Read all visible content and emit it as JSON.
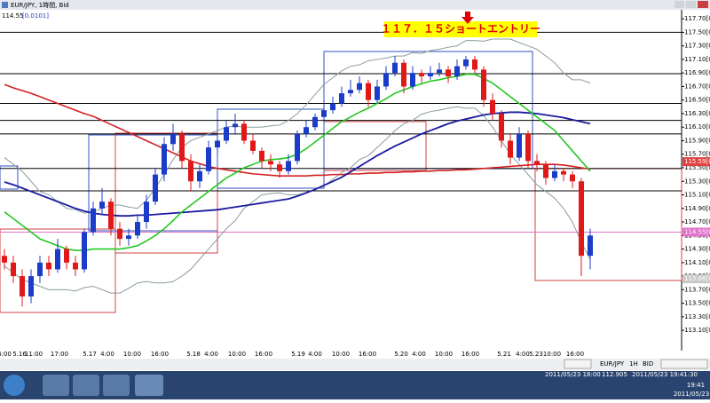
{
  "window": {
    "title": "EUR/JPY, 1時間, Bid",
    "quote": "114.55",
    "spread": "[0.0101]"
  },
  "chart_data": {
    "type": "candlestick",
    "annotation": "１１７．１５ショートエントリー",
    "time_labels": [
      "4:00",
      "5.16",
      "11:00",
      "17:00",
      "5.17",
      "4:00",
      "10:00",
      "16:00",
      "5.18",
      "4:00",
      "10:00",
      "16:00",
      "5.19",
      "4:00",
      "10:00",
      "16:00",
      "5.20",
      "4:00",
      "10:00",
      "16:00",
      "5.21",
      "4:00",
      "5.23",
      "10:00",
      "16:00"
    ],
    "up_color": "#1a3cc8",
    "down_color": "#e01818",
    "candles": [
      [
        114.2,
        114.3,
        114.0,
        114.1
      ],
      [
        114.1,
        114.2,
        113.8,
        113.9
      ],
      [
        113.9,
        114.0,
        113.45,
        113.6
      ],
      [
        113.6,
        114.0,
        113.5,
        113.9
      ],
      [
        113.9,
        114.2,
        113.8,
        114.1
      ],
      [
        114.1,
        114.2,
        113.9,
        114.0
      ],
      [
        114.0,
        114.45,
        113.95,
        114.3
      ],
      [
        114.3,
        114.35,
        114.0,
        114.1
      ],
      [
        114.1,
        114.2,
        113.9,
        114.0
      ],
      [
        114.0,
        114.6,
        113.95,
        114.55
      ],
      [
        114.55,
        115.0,
        114.5,
        114.9
      ],
      [
        114.9,
        115.2,
        114.8,
        115.0
      ],
      [
        115.0,
        115.05,
        114.5,
        114.6
      ],
      [
        114.6,
        114.7,
        114.35,
        114.45
      ],
      [
        114.45,
        114.6,
        114.35,
        114.5
      ],
      [
        114.5,
        114.8,
        114.45,
        114.7
      ],
      [
        114.7,
        115.1,
        114.6,
        115.0
      ],
      [
        115.0,
        115.5,
        114.95,
        115.4
      ],
      [
        115.4,
        115.95,
        115.3,
        115.85
      ],
      [
        115.85,
        116.15,
        115.75,
        116.0
      ],
      [
        116.0,
        116.05,
        115.5,
        115.6
      ],
      [
        115.6,
        115.7,
        115.15,
        115.3
      ],
      [
        115.3,
        115.55,
        115.2,
        115.45
      ],
      [
        115.45,
        115.9,
        115.4,
        115.8
      ],
      [
        115.8,
        116.0,
        115.7,
        115.9
      ],
      [
        115.9,
        116.2,
        115.85,
        116.1
      ],
      [
        116.1,
        116.3,
        116.0,
        116.15
      ],
      [
        116.15,
        116.2,
        115.85,
        115.9
      ],
      [
        115.9,
        116.0,
        115.7,
        115.75
      ],
      [
        115.75,
        115.8,
        115.5,
        115.6
      ],
      [
        115.6,
        115.7,
        115.45,
        115.55
      ],
      [
        115.55,
        115.6,
        115.35,
        115.45
      ],
      [
        115.45,
        115.7,
        115.4,
        115.6
      ],
      [
        115.6,
        116.05,
        115.55,
        116.0
      ],
      [
        116.0,
        116.2,
        115.95,
        116.1
      ],
      [
        116.1,
        116.3,
        116.05,
        116.25
      ],
      [
        116.25,
        116.45,
        116.2,
        116.35
      ],
      [
        116.35,
        116.55,
        116.3,
        116.45
      ],
      [
        116.45,
        116.7,
        116.4,
        116.6
      ],
      [
        116.6,
        116.8,
        116.55,
        116.65
      ],
      [
        116.65,
        116.85,
        116.6,
        116.75
      ],
      [
        116.75,
        116.8,
        116.4,
        116.5
      ],
      [
        116.5,
        116.8,
        116.45,
        116.7
      ],
      [
        116.7,
        117.0,
        116.65,
        116.9
      ],
      [
        116.9,
        117.15,
        116.85,
        117.05
      ],
      [
        117.05,
        117.1,
        116.6,
        116.7
      ],
      [
        116.7,
        117.0,
        116.65,
        116.9
      ],
      [
        116.9,
        116.95,
        116.75,
        116.85
      ],
      [
        116.85,
        117.0,
        116.8,
        116.9
      ],
      [
        116.9,
        117.05,
        116.85,
        116.95
      ],
      [
        116.95,
        117.0,
        116.75,
        116.85
      ],
      [
        116.85,
        117.1,
        116.8,
        117.0
      ],
      [
        117.0,
        117.15,
        116.95,
        117.1
      ],
      [
        117.1,
        117.15,
        116.9,
        116.95
      ],
      [
        116.95,
        117.0,
        116.4,
        116.5
      ],
      [
        116.5,
        116.6,
        116.2,
        116.3
      ],
      [
        116.3,
        116.35,
        115.8,
        115.9
      ],
      [
        115.9,
        116.0,
        115.55,
        115.65
      ],
      [
        115.65,
        116.1,
        115.6,
        116.0
      ],
      [
        116.0,
        116.05,
        115.5,
        115.6
      ],
      [
        115.6,
        115.7,
        115.45,
        115.55
      ],
      [
        115.55,
        115.6,
        115.25,
        115.35
      ],
      [
        115.35,
        115.55,
        115.3,
        115.45
      ],
      [
        115.45,
        115.5,
        115.3,
        115.4
      ],
      [
        115.4,
        115.45,
        115.2,
        115.3
      ],
      [
        115.3,
        115.35,
        113.9,
        114.2
      ],
      [
        114.2,
        114.6,
        114.0,
        114.5
      ]
    ],
    "indicators": [
      {
        "color": "#8c9c9c",
        "width": 1,
        "values": [
          115.65,
          115.55,
          115.45,
          115.3,
          115.15,
          115.1,
          115.0,
          114.9,
          114.88,
          114.83,
          114.85,
          114.9,
          114.95,
          114.95,
          114.92,
          114.9,
          115.02,
          115.2,
          115.4,
          115.62,
          115.8,
          115.9,
          115.95,
          116.0,
          116.05,
          116.1,
          116.12,
          116.1,
          116.1,
          116.1,
          116.12,
          116.13,
          116.2,
          116.3,
          116.43,
          116.58,
          116.73,
          116.83,
          116.93,
          117.0,
          117.02,
          117.08,
          117.1,
          117.12,
          117.15,
          117.15,
          117.2,
          117.19,
          117.23,
          117.25,
          117.28,
          117.3,
          117.38,
          117.38,
          117.37,
          117.4,
          117.4,
          117.4,
          117.35,
          117.3,
          117.25,
          117.15,
          117.05,
          116.9,
          116.8,
          116.8,
          116.75
        ]
      },
      {
        "color": "#8c9c9c",
        "width": 1,
        "values": [
          114.05,
          113.95,
          113.85,
          113.8,
          113.75,
          113.7,
          113.7,
          113.7,
          113.68,
          113.73,
          113.75,
          113.7,
          113.65,
          113.65,
          113.72,
          113.8,
          113.82,
          113.8,
          113.8,
          113.82,
          113.9,
          114.0,
          114.15,
          114.3,
          114.45,
          114.6,
          114.72,
          114.9,
          115.0,
          115.1,
          115.12,
          115.13,
          115.1,
          115.1,
          115.13,
          115.18,
          115.23,
          115.33,
          115.43,
          115.5,
          115.62,
          115.68,
          115.8,
          115.92,
          116.05,
          116.15,
          116.2,
          116.29,
          116.33,
          116.35,
          116.38,
          116.4,
          116.38,
          116.38,
          116.27,
          116.1,
          115.9,
          115.7,
          115.55,
          115.4,
          115.25,
          115.15,
          115.05,
          114.9,
          114.7,
          114.4,
          114.15
        ]
      },
      {
        "color": "#d42020",
        "width": 1.6,
        "values": [
          116.73,
          116.68,
          116.64,
          116.6,
          116.55,
          116.5,
          116.45,
          116.4,
          116.35,
          116.3,
          116.26,
          116.2,
          116.14,
          116.08,
          116.02,
          115.96,
          115.9,
          115.84,
          115.78,
          115.72,
          115.66,
          115.6,
          115.56,
          115.52,
          115.49,
          115.47,
          115.45,
          115.43,
          115.41,
          115.4,
          115.39,
          115.38,
          115.38,
          115.38,
          115.38,
          115.39,
          115.39,
          115.4,
          115.4,
          115.41,
          115.41,
          115.42,
          115.42,
          115.43,
          115.43,
          115.44,
          115.44,
          115.45,
          115.45,
          115.46,
          115.46,
          115.47,
          115.47,
          115.48,
          115.49,
          115.5,
          115.51,
          115.52,
          115.53,
          115.54,
          115.55,
          115.55,
          115.55,
          115.54,
          115.52,
          115.5,
          115.48
        ]
      },
      {
        "color": "#1a1aa0",
        "width": 1.8,
        "values": [
          115.29,
          115.25,
          115.2,
          115.15,
          115.1,
          115.05,
          115.0,
          114.95,
          114.9,
          114.86,
          114.83,
          114.81,
          114.8,
          114.79,
          114.79,
          114.8,
          114.8,
          114.81,
          114.82,
          114.83,
          114.84,
          114.85,
          114.86,
          114.87,
          114.88,
          114.9,
          114.92,
          114.94,
          114.96,
          114.98,
          115.0,
          115.02,
          115.04,
          115.08,
          115.13,
          115.18,
          115.24,
          115.3,
          115.36,
          115.44,
          115.52,
          115.6,
          115.68,
          115.75,
          115.82,
          115.88,
          115.94,
          116.0,
          116.05,
          116.1,
          116.15,
          116.19,
          116.22,
          116.25,
          116.28,
          116.3,
          116.31,
          116.32,
          116.32,
          116.31,
          116.3,
          116.28,
          116.26,
          116.24,
          116.21,
          116.18,
          116.15
        ]
      },
      {
        "color": "#22c822",
        "width": 1.6,
        "values": [
          114.85,
          114.75,
          114.65,
          114.55,
          114.45,
          114.4,
          114.35,
          114.3,
          114.28,
          114.28,
          114.3,
          114.3,
          114.3,
          114.3,
          114.32,
          114.35,
          114.42,
          114.5,
          114.6,
          114.72,
          114.85,
          114.95,
          115.05,
          115.15,
          115.25,
          115.35,
          115.42,
          115.5,
          115.55,
          115.6,
          115.62,
          115.63,
          115.65,
          115.7,
          115.78,
          115.88,
          115.98,
          116.08,
          116.18,
          116.25,
          116.32,
          116.38,
          116.45,
          116.52,
          116.6,
          116.65,
          116.7,
          116.74,
          116.78,
          116.8,
          116.83,
          116.85,
          116.88,
          116.88,
          116.82,
          116.75,
          116.65,
          116.55,
          116.45,
          116.35,
          116.25,
          116.15,
          116.05,
          115.9,
          115.75,
          115.6,
          115.45
        ]
      }
    ],
    "levels": [
      117.5,
      116.89,
      116.45,
      116.2,
      116.0,
      115.49,
      115.16
    ],
    "level_color": "#000000",
    "markers": [
      {
        "value": 115.59,
        "label": "115.59[0]",
        "color": "#e04040",
        "line": false
      },
      {
        "value": 114.55,
        "label": "114.55[0]",
        "color": "#e070c8",
        "line": true
      },
      {
        "value": 113.86,
        "label": "113.86[0]",
        "color": "#c8c8c8",
        "line": false
      }
    ],
    "ylim": [
      112.8,
      117.82
    ],
    "yticks": [
      {
        "value": 117.7,
        "label": "117.70[0]"
      },
      {
        "value": 117.5,
        "label": "117.50[0]"
      },
      {
        "value": 117.3,
        "label": "117.30[0]"
      },
      {
        "value": 117.1,
        "label": "117.10[0]"
      },
      {
        "value": 116.9,
        "label": "116.90[0]"
      },
      {
        "value": 116.7,
        "label": "116.70[0]"
      },
      {
        "value": 116.5,
        "label": "116.50[0]"
      },
      {
        "value": 116.3,
        "label": "116.30[0]"
      },
      {
        "value": 116.1,
        "label": "116.10[0]"
      },
      {
        "value": 115.9,
        "label": "115.90[0]"
      },
      {
        "value": 115.7,
        "label": "115.70[0]"
      },
      {
        "value": 115.5,
        "label": "115.50[0]"
      },
      {
        "value": 115.3,
        "label": "115.30[0]"
      },
      {
        "value": 115.1,
        "label": "115.10[0]"
      },
      {
        "value": 114.9,
        "label": "114.90[0]"
      },
      {
        "value": 114.7,
        "label": "114.70[0]"
      },
      {
        "value": 114.5,
        "label": "114.50[0]"
      },
      {
        "value": 114.3,
        "label": "114.30[0]"
      },
      {
        "value": 114.1,
        "label": "114.10[0]"
      },
      {
        "value": 113.9,
        "label": "113.90[0]"
      },
      {
        "value": 113.7,
        "label": "113.70[0]"
      },
      {
        "value": 113.5,
        "label": "113.50[0]"
      },
      {
        "value": 113.3,
        "label": "113.30[0]"
      },
      {
        "value": 113.1,
        "label": "113.10[0]"
      }
    ]
  },
  "toolbar": {
    "symbol": "EUR/JPY",
    "period": "1H",
    "side": "BID"
  },
  "taskbar": {
    "status_left": "2011/05/23 18:00",
    "status_price": "112.905",
    "status_time": "2011/05/23 19:41:30",
    "clock_time": "19:41",
    "clock_date": "2011/05/23"
  }
}
